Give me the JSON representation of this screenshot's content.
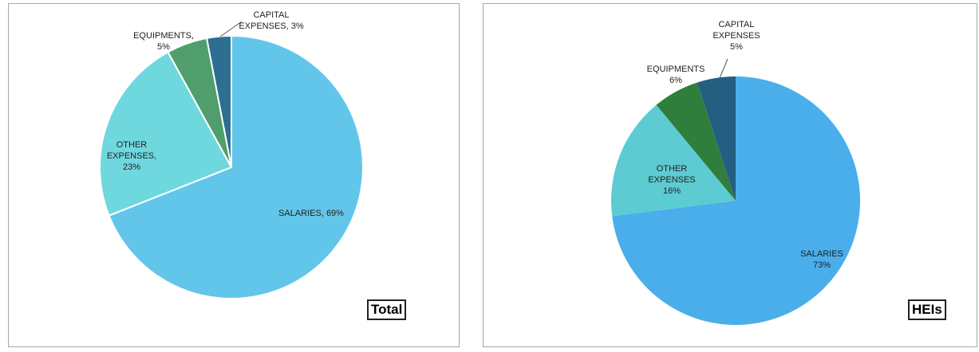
{
  "chart_data": [
    {
      "type": "pie",
      "title": "Total",
      "categories": [
        "SALARIES,",
        "OTHER EXPENSES,",
        "EQUIPMENTS,",
        "CAPITAL EXPENSES,"
      ],
      "values": [
        69,
        23,
        5,
        3
      ],
      "value_labels": [
        "69%",
        "23%",
        "5%",
        "3%"
      ],
      "colors": [
        "#62c6ea",
        "#6fd8de",
        "#4f9e6c",
        "#2c6f90"
      ]
    },
    {
      "type": "pie",
      "title": "HEIs",
      "categories": [
        "SALARIES",
        "OTHER EXPENSES",
        "EQUIPMENTS",
        "CAPITAL EXPENSES"
      ],
      "values": [
        73,
        16,
        6,
        5
      ],
      "value_labels": [
        "73%",
        "16%",
        "6%",
        "5%"
      ],
      "colors": [
        "#4aaeea",
        "#5ccbd2",
        "#2f7e3c",
        "#245f82"
      ]
    }
  ]
}
